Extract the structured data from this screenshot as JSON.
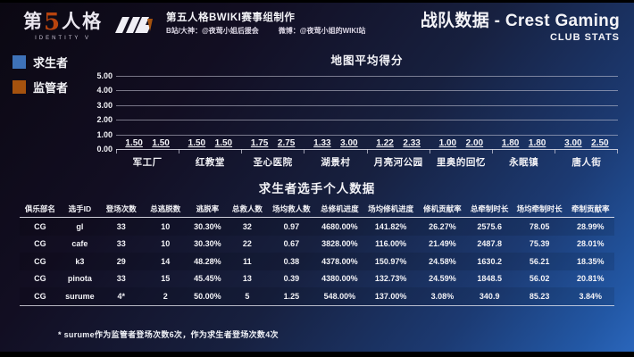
{
  "header": {
    "logo_title_pre": "第",
    "logo_title_five": "5",
    "logo_title_post": "人格",
    "logo_subtitle": "IDENTITY V",
    "credit_line1": "第五人格BWIKI赛事组制作",
    "credit_bilibili": "B站/大神：@夜莺小姐后援会",
    "credit_weibo": "微博：@夜莺小姐的WIKI站",
    "title": "战队数据 - Crest Gaming",
    "subtitle": "CLUB STATS"
  },
  "legend": {
    "survivor": "求生者",
    "hunter": "监管者"
  },
  "chart_data": {
    "type": "bar",
    "title": "地图平均得分",
    "categories": [
      "军工厂",
      "红教堂",
      "圣心医院",
      "湖景村",
      "月亮河公园",
      "里奥的回忆",
      "永眠镇",
      "唐人街"
    ],
    "series": [
      {
        "name": "求生者",
        "color": "#3E72B8",
        "values": [
          1.5,
          1.5,
          1.75,
          1.33,
          1.22,
          1.0,
          1.8,
          3.0
        ]
      },
      {
        "name": "监管者",
        "color": "#A5520E",
        "values": [
          1.5,
          1.5,
          2.75,
          3.0,
          2.33,
          2.0,
          1.8,
          2.5
        ]
      }
    ],
    "ylim": [
      0,
      5
    ],
    "yticks": [
      "5.00",
      "4.00",
      "3.00",
      "2.00",
      "1.00",
      "0.00"
    ],
    "grid": true,
    "legend_position": "top-left",
    "value_label_format": "2dp-underlined"
  },
  "table": {
    "title": "求生者选手个人数据",
    "headers": [
      "俱乐部名",
      "选手ID",
      "登场次数",
      "总逃脱数",
      "逃脱率",
      "总救人数",
      "场均救人数",
      "总修机进度",
      "场均修机进度",
      "修机贡献率",
      "总牵制时长",
      "场均牵制时长",
      "牵制贡献率"
    ],
    "rows": [
      [
        "CG",
        "gl",
        "33",
        "10",
        "30.30%",
        "32",
        "0.97",
        "4680.00%",
        "141.82%",
        "26.27%",
        "2575.6",
        "78.05",
        "28.99%"
      ],
      [
        "CG",
        "cafe",
        "33",
        "10",
        "30.30%",
        "22",
        "0.67",
        "3828.00%",
        "116.00%",
        "21.49%",
        "2487.8",
        "75.39",
        "28.01%"
      ],
      [
        "CG",
        "k3",
        "29",
        "14",
        "48.28%",
        "11",
        "0.38",
        "4378.00%",
        "150.97%",
        "24.58%",
        "1630.2",
        "56.21",
        "18.35%"
      ],
      [
        "CG",
        "pinota",
        "33",
        "15",
        "45.45%",
        "13",
        "0.39",
        "4380.00%",
        "132.73%",
        "24.59%",
        "1848.5",
        "56.02",
        "20.81%"
      ],
      [
        "CG",
        "surume",
        "4*",
        "2",
        "50.00%",
        "5",
        "1.25",
        "548.00%",
        "137.00%",
        "3.08%",
        "340.9",
        "85.23",
        "3.84%"
      ]
    ]
  },
  "footnote": "* surume作为监管者登场次数6次，作为求生者登场次数4次",
  "colors": {
    "survivor_blue": "#3E72B8",
    "hunter_brown": "#A5520E",
    "logo_orange": "#B8440E",
    "background_dark": "#120E22",
    "background_blue": "#2B67BD"
  }
}
